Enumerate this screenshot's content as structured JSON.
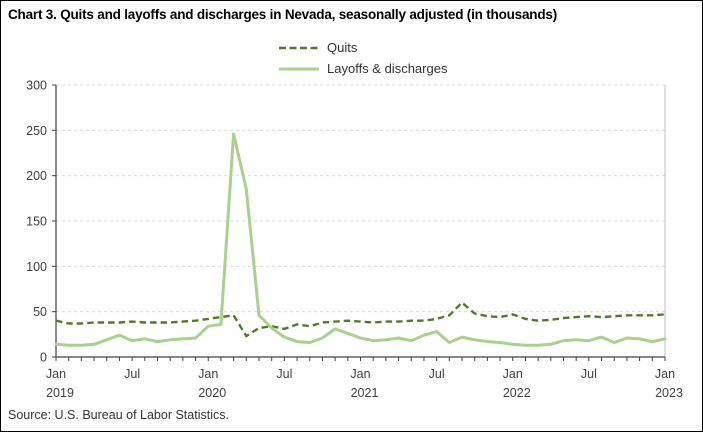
{
  "title": "Chart 3. Quits and layoffs and discharges in Nevada, seasonally adjusted (in thousands)",
  "source": "Source: U.S. Bureau of Labor Statistics.",
  "legend": {
    "quits": "Quits",
    "layoffs": "Layoffs & discharges"
  },
  "colors": {
    "quits": "#4e7b2a",
    "layoffs": "#a9d18e",
    "grid": "#d9d9d9",
    "axis": "#404040",
    "plot_right_border": "#bfbfbf",
    "label_text": "#404040"
  },
  "chart_data": {
    "type": "line",
    "title": "Chart 3. Quits and layoffs and discharges in Nevada, seasonally adjusted (in thousands)",
    "x_frequency": "monthly",
    "x_start": "Jan 2019",
    "x_end": "Jan 2023",
    "ylim": [
      0,
      300
    ],
    "yticks": [
      0,
      50,
      100,
      150,
      200,
      250,
      300
    ],
    "grid": "horizontal-dashed",
    "legend_position": "top-center",
    "x_ticks": [
      {
        "index": 0,
        "month": "Jan",
        "year": "2019"
      },
      {
        "index": 6,
        "month": "Jul",
        "year": ""
      },
      {
        "index": 12,
        "month": "Jan",
        "year": "2020"
      },
      {
        "index": 18,
        "month": "Jul",
        "year": ""
      },
      {
        "index": 24,
        "month": "Jan",
        "year": "2021"
      },
      {
        "index": 30,
        "month": "Jul",
        "year": ""
      },
      {
        "index": 36,
        "month": "Jan",
        "year": "2022"
      },
      {
        "index": 42,
        "month": "Jul",
        "year": ""
      },
      {
        "index": 48,
        "month": "Jan",
        "year": "2023"
      }
    ],
    "series": [
      {
        "name": "Quits",
        "style": "dashed",
        "values": [
          40,
          37,
          37,
          38,
          38,
          38,
          39,
          38,
          38,
          38,
          39,
          40,
          42,
          44,
          46,
          23,
          32,
          34,
          31,
          36,
          34,
          38,
          39,
          40,
          39,
          38,
          39,
          39,
          40,
          40,
          42,
          46,
          60,
          48,
          45,
          44,
          47,
          42,
          40,
          41,
          43,
          44,
          45,
          44,
          45,
          46,
          46,
          46,
          47
        ]
      },
      {
        "name": "Layoffs & discharges",
        "style": "solid",
        "values": [
          14,
          13,
          13,
          14,
          19,
          24,
          18,
          20,
          17,
          19,
          20,
          21,
          34,
          36,
          246,
          185,
          46,
          32,
          22,
          17,
          16,
          21,
          31,
          26,
          21,
          18,
          19,
          21,
          18,
          24,
          28,
          16,
          22,
          19,
          17,
          16,
          14,
          13,
          13,
          14,
          18,
          19,
          18,
          22,
          16,
          21,
          20,
          17,
          20
        ]
      }
    ]
  }
}
